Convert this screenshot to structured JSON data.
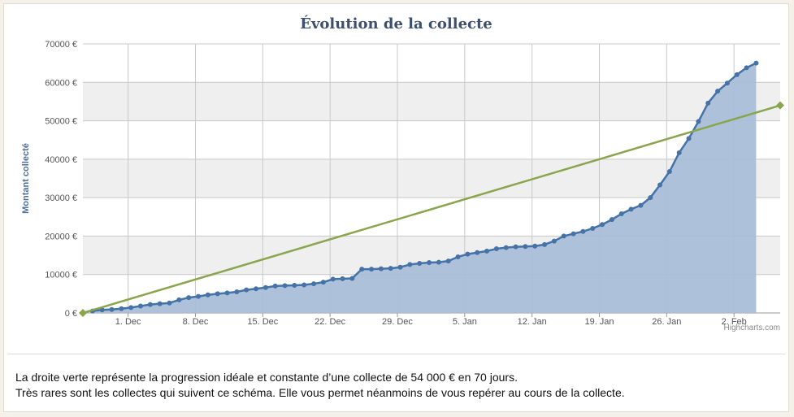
{
  "chart_data": {
    "type": "line",
    "title": "Évolution de la collecte",
    "ylabel": "Montant collecté",
    "xlabel": "",
    "ylim": [
      0,
      70000
    ],
    "x_range_days": [
      0,
      72.5
    ],
    "grid": true,
    "credits": "Highcharts.com",
    "x_ticks": [
      {
        "label": "1. Dec",
        "day": 4.7
      },
      {
        "label": "8. Dec",
        "day": 11.7
      },
      {
        "label": "15. Dec",
        "day": 18.7
      },
      {
        "label": "22. Dec",
        "day": 25.7
      },
      {
        "label": "29. Dec",
        "day": 32.7
      },
      {
        "label": "5. Jan",
        "day": 39.7
      },
      {
        "label": "12. Jan",
        "day": 46.7
      },
      {
        "label": "19. Jan",
        "day": 53.7
      },
      {
        "label": "26. Jan",
        "day": 60.7
      },
      {
        "label": "2. Feb",
        "day": 67.7
      }
    ],
    "y_ticks": [
      {
        "label": "0 €",
        "value": 0
      },
      {
        "label": "10000 €",
        "value": 10000
      },
      {
        "label": "20000 €",
        "value": 20000
      },
      {
        "label": "30000 €",
        "value": 30000
      },
      {
        "label": "40000 €",
        "value": 40000
      },
      {
        "label": "50000 €",
        "value": 50000
      },
      {
        "label": "60000 €",
        "value": 60000
      },
      {
        "label": "70000 €",
        "value": 70000
      }
    ],
    "series": [
      {
        "type": "area",
        "color": "#4572a7",
        "fill": "#a9bed8",
        "points": [
          [
            1,
            500
          ],
          [
            2,
            800
          ],
          [
            3,
            900
          ],
          [
            4,
            1100
          ],
          [
            5,
            1400
          ],
          [
            6,
            1800
          ],
          [
            7,
            2200
          ],
          [
            8,
            2400
          ],
          [
            9,
            2600
          ],
          [
            10,
            3400
          ],
          [
            11,
            4000
          ],
          [
            12,
            4300
          ],
          [
            13,
            4700
          ],
          [
            14,
            5000
          ],
          [
            15,
            5200
          ],
          [
            16,
            5500
          ],
          [
            17,
            6000
          ],
          [
            18,
            6300
          ],
          [
            19,
            6600
          ],
          [
            20,
            7000
          ],
          [
            21,
            7100
          ],
          [
            22,
            7200
          ],
          [
            23,
            7300
          ],
          [
            24,
            7600
          ],
          [
            25,
            8000
          ],
          [
            26,
            8800
          ],
          [
            27,
            8900
          ],
          [
            28,
            9000
          ],
          [
            29,
            11400
          ],
          [
            30,
            11400
          ],
          [
            31,
            11500
          ],
          [
            32,
            11600
          ],
          [
            33,
            11900
          ],
          [
            34,
            12600
          ],
          [
            35,
            12900
          ],
          [
            36,
            13100
          ],
          [
            37,
            13200
          ],
          [
            38,
            13500
          ],
          [
            39,
            14600
          ],
          [
            40,
            15300
          ],
          [
            41,
            15700
          ],
          [
            42,
            16100
          ],
          [
            43,
            16700
          ],
          [
            44,
            17000
          ],
          [
            45,
            17200
          ],
          [
            46,
            17300
          ],
          [
            47,
            17400
          ],
          [
            48,
            17800
          ],
          [
            49,
            18700
          ],
          [
            50,
            20000
          ],
          [
            51,
            20600
          ],
          [
            52,
            21200
          ],
          [
            53,
            22000
          ],
          [
            54,
            23000
          ],
          [
            55,
            24300
          ],
          [
            56,
            25800
          ],
          [
            57,
            27000
          ],
          [
            58,
            28000
          ],
          [
            59,
            30000
          ],
          [
            60,
            33300
          ],
          [
            61,
            36800
          ],
          [
            62,
            41700
          ],
          [
            63,
            45400
          ],
          [
            64,
            49800
          ],
          [
            65,
            54600
          ],
          [
            66,
            57700
          ],
          [
            67,
            59800
          ],
          [
            68,
            62000
          ],
          [
            69,
            63800
          ],
          [
            70,
            65000
          ]
        ]
      },
      {
        "type": "line",
        "color": "#89a54e",
        "points": [
          [
            0,
            0
          ],
          [
            72.5,
            54000
          ]
        ]
      }
    ]
  },
  "description": {
    "line1": "La droite verte représente la progression idéale et constante d’une collecte de 54 000 € en 70 jours.",
    "line2": "Très rares sont les collectes qui suivent ce schéma. Elle vous permet néanmoins de vous repérer au cours de la collecte."
  }
}
